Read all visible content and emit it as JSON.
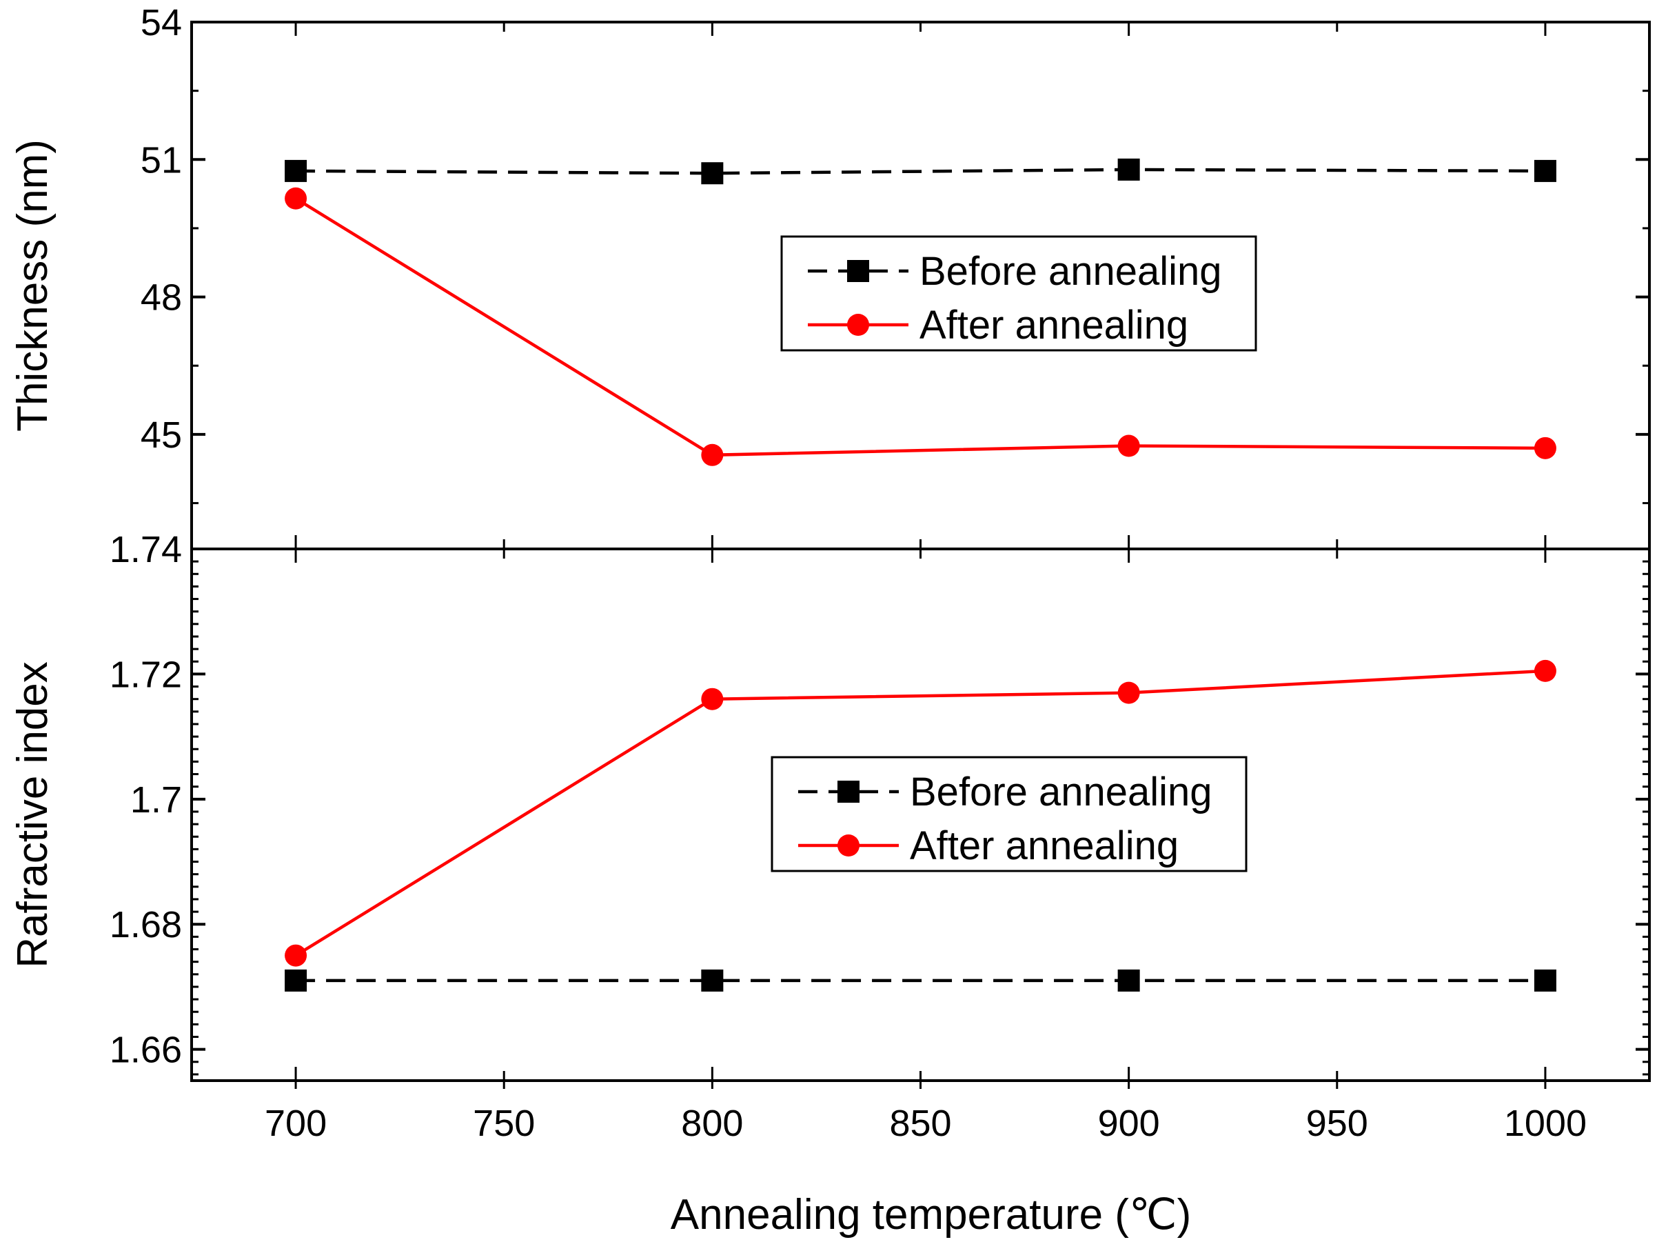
{
  "chart_data": [
    {
      "type": "line",
      "panel": "top",
      "title": "",
      "xlabel": "Annealing temperature (℃)",
      "ylabel": "Thickness (nm)",
      "xlim": [
        675,
        1025
      ],
      "ylim": [
        42.5,
        54
      ],
      "yticks": [
        45,
        48,
        51,
        54
      ],
      "x": [
        700,
        800,
        900,
        1000
      ],
      "series": [
        {
          "name": "Before annealing",
          "values": [
            50.75,
            50.7,
            50.78,
            50.75
          ],
          "color": "#000000",
          "marker": "square",
          "line": "dashed"
        },
        {
          "name": "After annealing",
          "values": [
            50.15,
            44.55,
            44.75,
            44.7
          ],
          "color": "#ff0000",
          "marker": "circle",
          "line": "solid"
        }
      ],
      "legend": "center-right"
    },
    {
      "type": "line",
      "panel": "bottom",
      "title": "",
      "xlabel": "Annealing temperature (℃)",
      "ylabel": "Rafractive index",
      "xlim": [
        675,
        1025
      ],
      "ylim": [
        1.655,
        1.74
      ],
      "yticks": [
        "1.66",
        "1.68",
        "1.7",
        "1.72",
        "1.74"
      ],
      "xticks": [
        700,
        750,
        800,
        850,
        900,
        950,
        1000
      ],
      "x": [
        700,
        800,
        900,
        1000
      ],
      "series": [
        {
          "name": "Before annealing",
          "values": [
            1.671,
            1.671,
            1.671,
            1.671
          ],
          "color": "#000000",
          "marker": "square",
          "line": "dashed"
        },
        {
          "name": "After annealing",
          "values": [
            1.675,
            1.716,
            1.717,
            1.7205
          ],
          "color": "#ff0000",
          "marker": "circle",
          "line": "solid"
        }
      ],
      "legend": "center-right"
    }
  ]
}
